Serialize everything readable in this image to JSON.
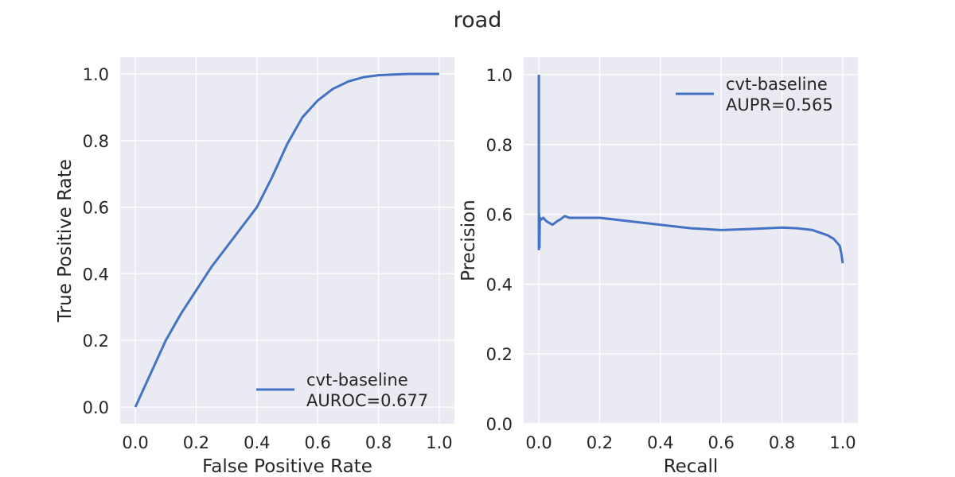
{
  "figure": {
    "suptitle": "road"
  },
  "colors": {
    "series": "#4472c4",
    "panel_bg": "#eaeaf2",
    "grid": "#ffffff",
    "text": "#262626"
  },
  "chart_data": [
    {
      "type": "line",
      "id": "roc",
      "title": "",
      "xlabel": "False Positive Rate",
      "ylabel": "True Positive Rate",
      "xlim": [
        -0.05,
        1.05
      ],
      "ylim": [
        -0.05,
        1.05
      ],
      "xticks": [
        "0.0",
        "0.2",
        "0.4",
        "0.6",
        "0.8",
        "1.0"
      ],
      "yticks": [
        "0.0",
        "0.2",
        "0.4",
        "0.6",
        "0.8",
        "1.0"
      ],
      "grid": true,
      "legend_position": "bottom-right",
      "series": [
        {
          "name": "cvt-baseline",
          "legend_lines": [
            "cvt-baseline",
            "AUROC=0.677"
          ],
          "x": [
            0.0,
            0.02,
            0.04,
            0.06,
            0.1,
            0.15,
            0.2,
            0.25,
            0.3,
            0.35,
            0.4,
            0.45,
            0.5,
            0.55,
            0.6,
            0.65,
            0.7,
            0.75,
            0.8,
            0.85,
            0.9,
            0.95,
            1.0
          ],
          "y": [
            0.0,
            0.04,
            0.08,
            0.12,
            0.2,
            0.28,
            0.35,
            0.42,
            0.48,
            0.54,
            0.6,
            0.69,
            0.79,
            0.87,
            0.92,
            0.955,
            0.977,
            0.99,
            0.996,
            0.998,
            1.0,
            1.0,
            1.0
          ]
        }
      ]
    },
    {
      "type": "line",
      "id": "pr",
      "title": "",
      "xlabel": "Recall",
      "ylabel": "Precision",
      "xlim": [
        -0.05,
        1.05
      ],
      "ylim": [
        0.0,
        1.05
      ],
      "xticks": [
        "0.0",
        "0.2",
        "0.4",
        "0.6",
        "0.8",
        "1.0"
      ],
      "yticks": [
        "0.0",
        "0.2",
        "0.4",
        "0.6",
        "0.8",
        "1.0"
      ],
      "grid": true,
      "legend_position": "top-right",
      "series": [
        {
          "name": "cvt-baseline",
          "legend_lines": [
            "cvt-baseline",
            "AUPR=0.565"
          ],
          "x": [
            0.0,
            0.0,
            0.001,
            0.002,
            0.003,
            0.004,
            0.008,
            0.015,
            0.025,
            0.035,
            0.045,
            0.06,
            0.07,
            0.085,
            0.1,
            0.15,
            0.2,
            0.3,
            0.4,
            0.5,
            0.6,
            0.7,
            0.8,
            0.85,
            0.9,
            0.95,
            0.97,
            0.99,
            0.995,
            1.0
          ],
          "y": [
            1.0,
            0.5,
            0.6,
            0.505,
            0.58,
            0.59,
            0.585,
            0.59,
            0.58,
            0.575,
            0.57,
            0.58,
            0.585,
            0.595,
            0.59,
            0.59,
            0.59,
            0.58,
            0.57,
            0.56,
            0.555,
            0.558,
            0.562,
            0.56,
            0.555,
            0.54,
            0.53,
            0.51,
            0.49,
            0.46
          ]
        }
      ]
    }
  ]
}
